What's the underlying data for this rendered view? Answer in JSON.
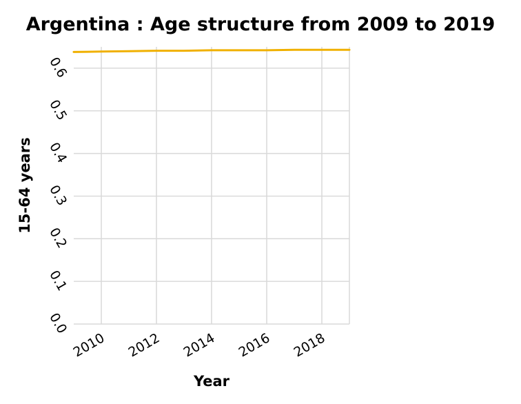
{
  "chart_data": {
    "type": "line",
    "title": "Argentina : Age structure from 2009 to 2019",
    "xlabel": "Year",
    "ylabel": "15-64 years",
    "x": [
      2009,
      2010,
      2011,
      2012,
      2013,
      2014,
      2015,
      2016,
      2017,
      2018,
      2019
    ],
    "series": [
      {
        "color": "#f0b000",
        "values": [
          0.638,
          0.639,
          0.64,
          0.641,
          0.641,
          0.642,
          0.642,
          0.642,
          0.643,
          0.643,
          0.643
        ]
      }
    ],
    "xlim": [
      2009,
      2019
    ],
    "ylim": [
      0,
      0.65
    ],
    "xticks": [
      2010,
      2012,
      2014,
      2016,
      2018
    ],
    "xtick_labels": [
      "2010",
      "2012",
      "2014",
      "2016",
      "2018"
    ],
    "yticks": [
      0,
      0.1,
      0.2,
      0.3,
      0.4,
      0.5,
      0.6
    ],
    "ytick_labels": [
      "0.0",
      "0.1",
      "0.2",
      "0.3",
      "0.4",
      "0.5",
      "0.6"
    ],
    "grid": true,
    "legend": "none"
  }
}
